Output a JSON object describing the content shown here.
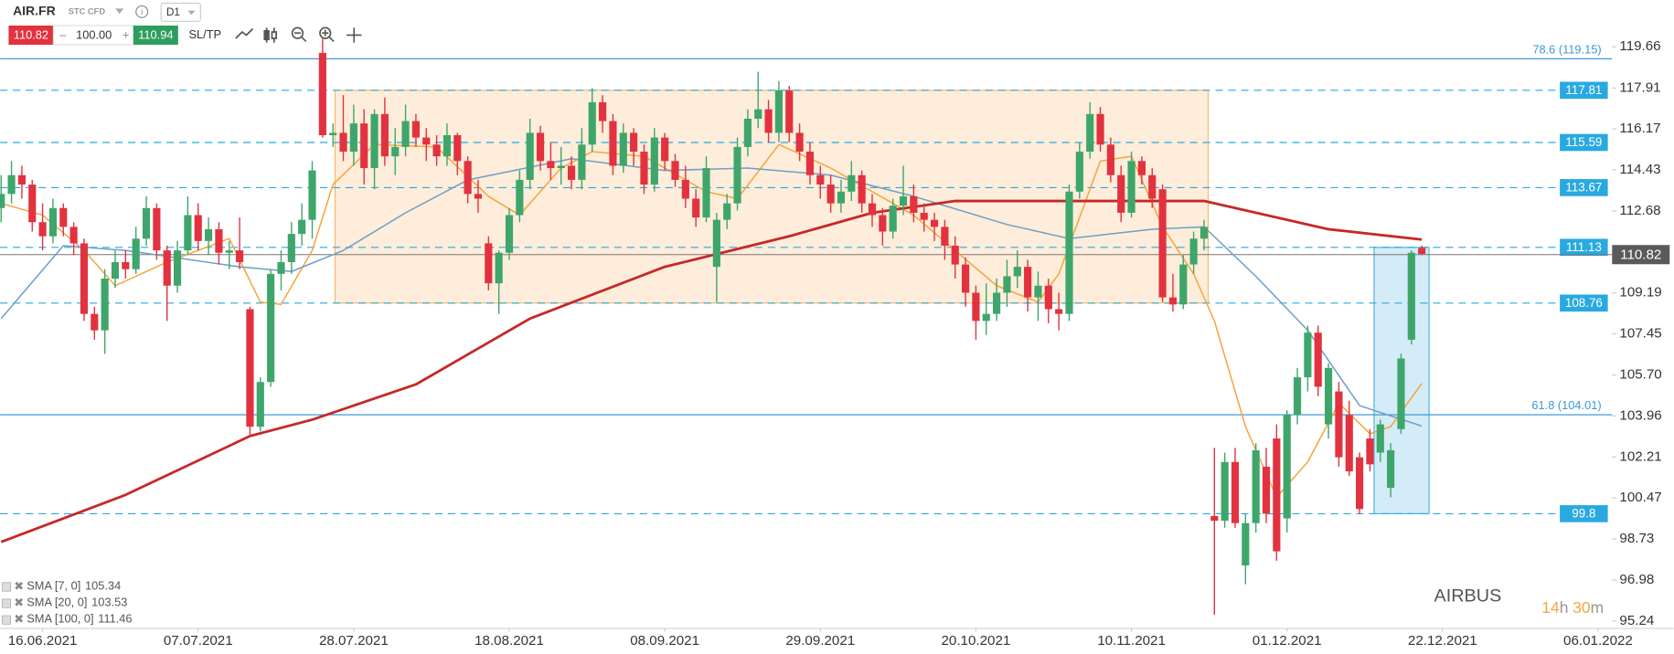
{
  "header": {
    "symbol": "AIR.FR",
    "instrument_type": "STC CFD",
    "interval": "D1",
    "sell_price": 110.82,
    "volume": "100.00",
    "buy_price": 110.94,
    "sltp": "SL/TP"
  },
  "countdown": {
    "hours": "14",
    "hours_unit": "h",
    "minutes": "30",
    "minutes_unit": "m"
  },
  "chart_data": {
    "type": "candlestick",
    "title": "AIRBUS",
    "up_color": "#3fa66b",
    "down_color": "#e2323f",
    "xlim": [
      -0.1,
      157.2
    ],
    "xticks": [
      {
        "value": 4,
        "label": "16.06.2021"
      },
      {
        "value": 19,
        "label": "07.07.2021"
      },
      {
        "value": 34,
        "label": "28.07.2021"
      },
      {
        "value": 49,
        "label": "18.08.2021"
      },
      {
        "value": 64,
        "label": "08.09.2021"
      },
      {
        "value": 79,
        "label": "29.09.2021"
      },
      {
        "value": 94,
        "label": "20.10.2021"
      },
      {
        "value": 109,
        "label": "10.11.2021"
      },
      {
        "value": 124,
        "label": "01.12.2021"
      },
      {
        "value": 139,
        "label": "22.12.2021"
      },
      {
        "value": 154,
        "label": "06.01.2022"
      }
    ],
    "ylim": [
      94.92,
      121.65
    ],
    "yticks": [
      119.66,
      117.91,
      116.17,
      114.43,
      112.68,
      109.19,
      107.45,
      {
        "value": 105.7,
        "label": "105.70"
      },
      103.96,
      102.21,
      100.47,
      98.73,
      96.98,
      95.24
    ],
    "current_price": 110.82,
    "zones": [
      {
        "x": [
          32.2,
          116.4
        ],
        "y": [
          108.76,
          117.81
        ],
        "color": "#f6b86b"
      },
      {
        "x": [
          132.4,
          137.7
        ],
        "y": [
          99.8,
          111.13
        ],
        "color": "#4fb3e0"
      }
    ],
    "levels": [
      {
        "value": 119.15,
        "label": "78.6 (119.15)",
        "style": "solid"
      },
      {
        "value": 117.81,
        "style": "dashed"
      },
      {
        "value": 115.59,
        "style": "dashed"
      },
      {
        "value": 113.67,
        "style": "dashed"
      },
      {
        "value": 111.13,
        "style": "dashed"
      },
      {
        "value": 108.76,
        "style": "dashed"
      },
      {
        "value": 104.01,
        "label": "61.8 (104.01)",
        "style": "solid"
      },
      {
        "value": 99.8,
        "style": "dashed"
      }
    ],
    "ohlc": [
      [
        112.8,
        114.2,
        112.2,
        113.4
      ],
      [
        113.4,
        114.8,
        113.0,
        114.2
      ],
      [
        114.2,
        114.6,
        113.2,
        113.8
      ],
      [
        113.8,
        114.0,
        111.8,
        112.2
      ],
      [
        112.2,
        113.0,
        111.0,
        111.6
      ],
      [
        111.6,
        113.2,
        111.3,
        112.8
      ],
      [
        112.8,
        113.0,
        111.6,
        112.0
      ],
      [
        112.0,
        112.2,
        110.8,
        111.3
      ],
      [
        111.3,
        111.5,
        108.0,
        108.3
      ],
      [
        108.3,
        108.6,
        107.2,
        107.6
      ],
      [
        107.6,
        110.2,
        106.6,
        109.8
      ],
      [
        109.8,
        111.0,
        109.4,
        110.5
      ],
      [
        110.5,
        111.0,
        109.8,
        110.2
      ],
      [
        110.2,
        112.0,
        110.0,
        111.5
      ],
      [
        111.5,
        113.3,
        111.2,
        112.8
      ],
      [
        112.8,
        113.0,
        110.6,
        111.0
      ],
      [
        111.0,
        111.2,
        108.0,
        109.5
      ],
      [
        109.5,
        111.4,
        109.2,
        111.0
      ],
      [
        111.0,
        113.3,
        110.8,
        112.5
      ],
      [
        112.5,
        113.0,
        111.0,
        111.4
      ],
      [
        111.4,
        112.4,
        110.8,
        111.9
      ],
      [
        111.9,
        112.2,
        110.4,
        110.9
      ],
      [
        110.9,
        111.4,
        110.2,
        111.0
      ],
      [
        111.0,
        112.4,
        110.2,
        110.5
      ],
      [
        108.5,
        108.6,
        103.1,
        103.5
      ],
      [
        103.5,
        105.6,
        103.3,
        105.4
      ],
      [
        105.4,
        110.2,
        105.2,
        110.0
      ],
      [
        110.0,
        111.0,
        109.3,
        110.5
      ],
      [
        110.5,
        112.2,
        110.0,
        111.7
      ],
      [
        111.7,
        113.0,
        111.2,
        112.3
      ],
      [
        112.3,
        114.8,
        111.5,
        114.4
      ],
      [
        119.4,
        120.0,
        115.8,
        115.9
      ],
      [
        115.9,
        116.4,
        115.4,
        116.0
      ],
      [
        116.0,
        117.6,
        114.8,
        115.2
      ],
      [
        115.2,
        117.2,
        114.6,
        116.4
      ],
      [
        116.4,
        117.0,
        113.8,
        114.5
      ],
      [
        114.5,
        117.0,
        113.6,
        116.8
      ],
      [
        116.8,
        117.5,
        114.6,
        115.0
      ],
      [
        115.0,
        116.2,
        114.2,
        115.4
      ],
      [
        115.4,
        117.2,
        115.0,
        116.5
      ],
      [
        116.5,
        116.8,
        115.4,
        115.8
      ],
      [
        115.8,
        116.2,
        114.8,
        115.5
      ],
      [
        115.5,
        115.9,
        114.6,
        115.0
      ],
      [
        115.0,
        116.4,
        114.6,
        115.9
      ],
      [
        115.9,
        116.0,
        114.2,
        114.8
      ],
      [
        114.8,
        115.0,
        113.0,
        113.4
      ],
      [
        113.4,
        114.0,
        112.6,
        113.2
      ],
      [
        111.3,
        111.6,
        109.3,
        109.6
      ],
      [
        109.6,
        111.0,
        108.3,
        110.9
      ],
      [
        110.9,
        112.8,
        110.6,
        112.5
      ],
      [
        112.5,
        114.4,
        112.2,
        114.0
      ],
      [
        114.0,
        116.6,
        113.6,
        116.0
      ],
      [
        116.0,
        116.3,
        114.4,
        114.8
      ],
      [
        114.8,
        115.6,
        114.0,
        114.5
      ],
      [
        114.5,
        115.4,
        113.8,
        114.6
      ],
      [
        114.6,
        115.0,
        113.6,
        114.0
      ],
      [
        114.0,
        116.2,
        113.6,
        115.5
      ],
      [
        115.5,
        117.9,
        115.2,
        117.3
      ],
      [
        117.3,
        117.6,
        116.0,
        116.5
      ],
      [
        116.5,
        116.8,
        114.2,
        114.6
      ],
      [
        114.6,
        116.4,
        114.3,
        116.0
      ],
      [
        116.0,
        116.2,
        114.6,
        115.2
      ],
      [
        115.2,
        115.5,
        113.4,
        113.8
      ],
      [
        113.8,
        116.2,
        113.5,
        115.8
      ],
      [
        115.8,
        116.0,
        114.4,
        114.8
      ],
      [
        114.8,
        115.1,
        113.7,
        114.0
      ],
      [
        114.0,
        114.6,
        112.8,
        113.2
      ],
      [
        113.2,
        113.6,
        112.0,
        112.4
      ],
      [
        112.4,
        115.0,
        112.2,
        114.5
      ],
      [
        110.3,
        112.6,
        108.8,
        112.3
      ],
      [
        112.3,
        113.4,
        111.9,
        113.0
      ],
      [
        113.0,
        115.8,
        112.7,
        115.4
      ],
      [
        115.4,
        117.0,
        115.0,
        116.6
      ],
      [
        116.6,
        118.6,
        116.2,
        117.0
      ],
      [
        117.0,
        117.4,
        115.6,
        116.0
      ],
      [
        116.0,
        118.2,
        115.6,
        117.8
      ],
      [
        117.8,
        118.0,
        115.6,
        116.0
      ],
      [
        116.0,
        116.4,
        114.8,
        115.2
      ],
      [
        115.2,
        115.6,
        113.8,
        114.2
      ],
      [
        114.2,
        114.6,
        113.2,
        113.8
      ],
      [
        113.8,
        114.2,
        112.6,
        113.0
      ],
      [
        113.0,
        114.0,
        112.6,
        113.5
      ],
      [
        113.5,
        114.8,
        113.1,
        114.2
      ],
      [
        114.2,
        114.4,
        112.6,
        113.0
      ],
      [
        113.0,
        113.4,
        112.0,
        112.5
      ],
      [
        112.5,
        112.8,
        111.2,
        111.8
      ],
      [
        111.8,
        113.2,
        111.5,
        112.9
      ],
      [
        112.9,
        114.6,
        112.5,
        113.3
      ],
      [
        113.3,
        113.8,
        112.2,
        112.6
      ],
      [
        112.6,
        113.0,
        111.8,
        112.3
      ],
      [
        112.3,
        112.6,
        111.4,
        112.0
      ],
      [
        112.0,
        112.3,
        110.6,
        111.2
      ],
      [
        111.2,
        111.6,
        109.8,
        110.4
      ],
      [
        110.4,
        110.7,
        108.6,
        109.2
      ],
      [
        109.2,
        109.5,
        107.2,
        108.0
      ],
      [
        108.0,
        109.6,
        107.4,
        108.3
      ],
      [
        108.3,
        109.8,
        108.0,
        109.2
      ],
      [
        109.2,
        110.6,
        108.6,
        109.9
      ],
      [
        109.9,
        111.0,
        109.4,
        110.3
      ],
      [
        110.3,
        110.6,
        108.4,
        109.0
      ],
      [
        109.0,
        110.1,
        108.0,
        109.5
      ],
      [
        109.5,
        109.8,
        107.9,
        108.5
      ],
      [
        108.5,
        109.2,
        107.6,
        108.3
      ],
      [
        108.3,
        113.8,
        108.0,
        113.5
      ],
      [
        113.5,
        115.6,
        113.2,
        115.2
      ],
      [
        115.2,
        117.3,
        114.9,
        116.8
      ],
      [
        116.8,
        117.1,
        115.2,
        115.5
      ],
      [
        115.5,
        115.8,
        113.9,
        114.2
      ],
      [
        114.2,
        114.6,
        112.2,
        112.6
      ],
      [
        112.6,
        115.2,
        112.4,
        114.8
      ],
      [
        114.8,
        115.0,
        113.8,
        114.2
      ],
      [
        114.2,
        114.5,
        112.8,
        113.2
      ],
      [
        113.6,
        113.8,
        108.8,
        109.0
      ],
      [
        109.0,
        110.0,
        108.4,
        108.7
      ],
      [
        108.7,
        110.8,
        108.5,
        110.4
      ],
      [
        110.4,
        111.8,
        110.0,
        111.5
      ],
      [
        111.5,
        112.3,
        111.0,
        112.0
      ],
      [
        99.7,
        102.6,
        95.5,
        99.5
      ],
      [
        99.5,
        102.4,
        99.2,
        102.0
      ],
      [
        102.0,
        102.6,
        99.2,
        99.4
      ],
      [
        97.6,
        99.8,
        96.8,
        99.4
      ],
      [
        99.4,
        102.8,
        99.0,
        102.5
      ],
      [
        101.8,
        102.6,
        99.4,
        99.8
      ],
      [
        103.0,
        103.6,
        97.8,
        98.2
      ],
      [
        99.6,
        104.2,
        99.0,
        104.0
      ],
      [
        104.0,
        106.0,
        103.6,
        105.6
      ],
      [
        105.6,
        107.8,
        105.0,
        107.5
      ],
      [
        107.5,
        107.8,
        104.8,
        105.2
      ],
      [
        103.6,
        106.2,
        103.0,
        106.0
      ],
      [
        105.0,
        105.4,
        101.8,
        102.2
      ],
      [
        104.0,
        104.6,
        101.4,
        101.6
      ],
      [
        102.2,
        102.4,
        99.8,
        100.0
      ],
      [
        103.0,
        103.4,
        101.6,
        101.9
      ],
      [
        102.4,
        103.8,
        102.0,
        103.6
      ],
      [
        100.9,
        102.8,
        100.5,
        102.5
      ],
      [
        103.4,
        106.6,
        103.2,
        106.4
      ],
      [
        107.2,
        111.0,
        107.0,
        110.9
      ],
      [
        111.1,
        111.2,
        110.8,
        110.85
      ]
    ],
    "series": [
      {
        "name": "SMA [7, 0]",
        "color": "#f5a640",
        "x": [
          0,
          4,
          8,
          11,
          16,
          22,
          25,
          27,
          30,
          32,
          36,
          42,
          47,
          50,
          54,
          57,
          62,
          68,
          71,
          75,
          80,
          88,
          92,
          96,
          100,
          102,
          106,
          109,
          112,
          115,
          117,
          120,
          123,
          126,
          129,
          132,
          134,
          137
        ],
        "values": [
          113.0,
          112.5,
          111.0,
          109.5,
          110.5,
          111.5,
          108.8,
          108.7,
          111.0,
          113.8,
          115.5,
          115.4,
          113.3,
          112.5,
          114.5,
          115.2,
          115.0,
          113.5,
          113.2,
          115.5,
          114.5,
          112.5,
          111.0,
          109.5,
          108.8,
          110.0,
          114.8,
          115.0,
          112.0,
          110.0,
          108.0,
          103.5,
          100.5,
          102.0,
          104.5,
          103.2,
          103.5,
          105.34
        ]
      },
      {
        "name": "SMA [20, 0]",
        "color": "#6e9fc8",
        "x": [
          0,
          6,
          12,
          23,
          28,
          33,
          39,
          45,
          55,
          64,
          72,
          80,
          88,
          97,
          103,
          111,
          116,
          121,
          126,
          131,
          137
        ],
        "values": [
          108.1,
          111.2,
          111.0,
          110.3,
          110.1,
          111.0,
          112.6,
          114.0,
          114.9,
          114.4,
          114.5,
          114.2,
          113.3,
          112.1,
          111.5,
          111.9,
          112.0,
          109.9,
          107.6,
          104.4,
          103.53
        ]
      },
      {
        "name": "SMA [100, 0]",
        "color": "#c62828",
        "x": [
          0,
          12,
          24,
          30,
          40,
          51,
          64,
          76,
          84,
          92,
          103,
          116,
          128,
          137
        ],
        "values": [
          98.6,
          100.6,
          103.1,
          103.8,
          105.3,
          108.1,
          110.3,
          111.6,
          112.6,
          113.1,
          113.1,
          113.1,
          111.9,
          111.46
        ]
      }
    ]
  }
}
